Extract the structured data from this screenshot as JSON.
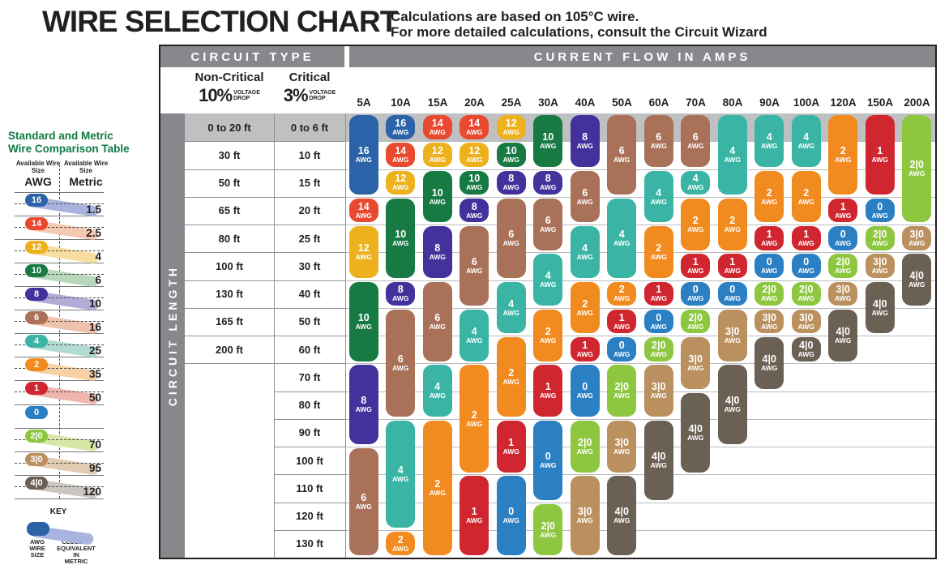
{
  "header": {
    "title": "WIRE SELECTION CHART",
    "subtitle_line1": "Calculations are based on 105°C wire.",
    "subtitle_line2": "For more detailed calculations, consult the Circuit Wizard"
  },
  "sidebar": {
    "title_line1": "Standard and Metric",
    "title_line2": "Wire Comparison Table",
    "title_color": "#0e7b45",
    "awg_col_header": "Available Wire Size",
    "awg_col_unit": "AWG",
    "metric_col_header": "Available Wire Size",
    "metric_col_unit": "Metric",
    "rows": [
      {
        "awg": "16",
        "metric": "1.5",
        "swoosh": "#a9b3dd"
      },
      {
        "awg": "14",
        "metric": "2.5",
        "swoosh": "#f4c8b1"
      },
      {
        "awg": "12",
        "metric": "4",
        "swoosh": "#f8dda1"
      },
      {
        "awg": "10",
        "metric": "6",
        "swoosh": "#b9d7ba"
      },
      {
        "awg": "8",
        "metric": "10",
        "swoosh": "#b5abd7"
      },
      {
        "awg": "6",
        "metric": "16",
        "swoosh": "#eec2ab"
      },
      {
        "awg": "4",
        "metric": "25",
        "swoosh": "#b0dcd2"
      },
      {
        "awg": "2",
        "metric": "35",
        "swoosh": "#f6d1a5"
      },
      {
        "awg": "1",
        "metric": "50",
        "swoosh": "#f0b6ae"
      },
      {
        "awg": "0",
        "metric": null,
        "swoosh": null
      },
      {
        "awg": "2|0",
        "metric": "70",
        "swoosh": "#d8e7a6"
      },
      {
        "awg": "3|0",
        "metric": "95",
        "swoosh": "#e2ccb1"
      },
      {
        "awg": "4|0",
        "metric": "120",
        "swoosh": "#ccc6c1"
      }
    ],
    "key": {
      "label": "KEY",
      "pill_label": "AWG WIRE SIZE",
      "swoosh_label": "CLOSEST EQUIVALENT IN METRIC",
      "pill_color": "#2b62a8",
      "swoosh_color": "#a9b5de"
    }
  },
  "table": {
    "circuit_type_header": "CIRCUIT TYPE",
    "current_flow_header": "CURRENT FLOW IN AMPS",
    "non_critical": {
      "title": "Non-Critical",
      "pct": "10%",
      "sub_line1": "VOLTAGE",
      "sub_line2": "DROP"
    },
    "critical": {
      "title": "Critical",
      "pct": "3%",
      "sub_line1": "VOLTAGE",
      "sub_line2": "DROP"
    },
    "circuit_length_label": "CIRCUIT LENGTH",
    "awg_unit_label": "AWG"
  },
  "awg_colors": {
    "16": "#2b62a8",
    "14": "#e8492f",
    "12": "#edb11d",
    "10": "#177a43",
    "8": "#41339b",
    "6": "#aa7159",
    "4": "#3ab5a5",
    "2": "#f18a1f",
    "1": "#d02630",
    "0": "#2b7fc3",
    "2|0": "#8dc63f",
    "3|0": "#ba905f",
    "4|0": "#6a6054"
  },
  "chart_data": {
    "type": "table",
    "title": "WIRE SELECTION CHART",
    "x_axis_label": "CURRENT FLOW IN AMPS",
    "y_axis_label": "CIRCUIT LENGTH",
    "amp_columns": [
      "5A",
      "10A",
      "15A",
      "20A",
      "25A",
      "30A",
      "40A",
      "50A",
      "60A",
      "70A",
      "80A",
      "90A",
      "100A",
      "120A",
      "150A",
      "200A"
    ],
    "length_rows": [
      {
        "non_critical": "0 to 20 ft",
        "critical": "0 to 6 ft"
      },
      {
        "non_critical": "30 ft",
        "critical": "10 ft"
      },
      {
        "non_critical": "50 ft",
        "critical": "15 ft"
      },
      {
        "non_critical": "65 ft",
        "critical": "20 ft"
      },
      {
        "non_critical": "80 ft",
        "critical": "25 ft"
      },
      {
        "non_critical": "100 ft",
        "critical": "30 ft"
      },
      {
        "non_critical": "130 ft",
        "critical": "40 ft"
      },
      {
        "non_critical": "165 ft",
        "critical": "50 ft"
      },
      {
        "non_critical": "200 ft",
        "critical": "60 ft"
      },
      {
        "non_critical": "",
        "critical": "70 ft"
      },
      {
        "non_critical": "",
        "critical": "80 ft"
      },
      {
        "non_critical": "",
        "critical": "90 ft"
      },
      {
        "non_critical": "",
        "critical": "100 ft"
      },
      {
        "non_critical": "",
        "critical": "110 ft"
      },
      {
        "non_critical": "",
        "critical": "120 ft"
      },
      {
        "non_critical": "",
        "critical": "130 ft"
      }
    ],
    "columns": [
      {
        "amp": "5A",
        "segments": [
          {
            "awg": "16",
            "from": 0,
            "to": 2
          },
          {
            "awg": "14",
            "from": 3,
            "to": 3
          },
          {
            "awg": "12",
            "from": 4,
            "to": 5
          },
          {
            "awg": "10",
            "from": 6,
            "to": 8
          },
          {
            "awg": "8",
            "from": 9,
            "to": 11
          },
          {
            "awg": "6",
            "from": 12,
            "to": 15
          }
        ]
      },
      {
        "amp": "10A",
        "segments": [
          {
            "awg": "16",
            "from": 0,
            "to": 0
          },
          {
            "awg": "14",
            "from": 1,
            "to": 1
          },
          {
            "awg": "12",
            "from": 2,
            "to": 2
          },
          {
            "awg": "10",
            "from": 3,
            "to": 5
          },
          {
            "awg": "8",
            "from": 6,
            "to": 6
          },
          {
            "awg": "6",
            "from": 7,
            "to": 10
          },
          {
            "awg": "4",
            "from": 11,
            "to": 14
          },
          {
            "awg": "2",
            "from": 15,
            "to": 15
          }
        ]
      },
      {
        "amp": "15A",
        "segments": [
          {
            "awg": "14",
            "from": 0,
            "to": 0
          },
          {
            "awg": "12",
            "from": 1,
            "to": 1
          },
          {
            "awg": "10",
            "from": 2,
            "to": 3
          },
          {
            "awg": "8",
            "from": 4,
            "to": 5
          },
          {
            "awg": "6",
            "from": 6,
            "to": 8
          },
          {
            "awg": "4",
            "from": 9,
            "to": 10
          },
          {
            "awg": "2",
            "from": 11,
            "to": 15
          }
        ]
      },
      {
        "amp": "20A",
        "segments": [
          {
            "awg": "14",
            "from": 0,
            "to": 0
          },
          {
            "awg": "12",
            "from": 1,
            "to": 1
          },
          {
            "awg": "10",
            "from": 2,
            "to": 2
          },
          {
            "awg": "8",
            "from": 3,
            "to": 3
          },
          {
            "awg": "6",
            "from": 4,
            "to": 6
          },
          {
            "awg": "4",
            "from": 7,
            "to": 8
          },
          {
            "awg": "2",
            "from": 9,
            "to": 12
          },
          {
            "awg": "1",
            "from": 13,
            "to": 15
          }
        ]
      },
      {
        "amp": "25A",
        "segments": [
          {
            "awg": "12",
            "from": 0,
            "to": 0
          },
          {
            "awg": "10",
            "from": 1,
            "to": 1
          },
          {
            "awg": "8",
            "from": 2,
            "to": 2
          },
          {
            "awg": "6",
            "from": 3,
            "to": 5
          },
          {
            "awg": "4",
            "from": 6,
            "to": 7
          },
          {
            "awg": "2",
            "from": 8,
            "to": 10
          },
          {
            "awg": "1",
            "from": 11,
            "to": 12
          },
          {
            "awg": "0",
            "from": 13,
            "to": 15
          }
        ]
      },
      {
        "amp": "30A",
        "segments": [
          {
            "awg": "10",
            "from": 0,
            "to": 1
          },
          {
            "awg": "8",
            "from": 2,
            "to": 2
          },
          {
            "awg": "6",
            "from": 3,
            "to": 4
          },
          {
            "awg": "4",
            "from": 5,
            "to": 6
          },
          {
            "awg": "2",
            "from": 7,
            "to": 8
          },
          {
            "awg": "1",
            "from": 9,
            "to": 10
          },
          {
            "awg": "0",
            "from": 11,
            "to": 13
          },
          {
            "awg": "2|0",
            "from": 14,
            "to": 15
          }
        ]
      },
      {
        "amp": "40A",
        "segments": [
          {
            "awg": "8",
            "from": 0,
            "to": 1
          },
          {
            "awg": "6",
            "from": 2,
            "to": 3
          },
          {
            "awg": "4",
            "from": 4,
            "to": 5
          },
          {
            "awg": "2",
            "from": 6,
            "to": 7
          },
          {
            "awg": "1",
            "from": 8,
            "to": 8
          },
          {
            "awg": "0",
            "from": 9,
            "to": 10
          },
          {
            "awg": "2|0",
            "from": 11,
            "to": 12
          },
          {
            "awg": "3|0",
            "from": 13,
            "to": 15
          }
        ]
      },
      {
        "amp": "50A",
        "segments": [
          {
            "awg": "6",
            "from": 0,
            "to": 2
          },
          {
            "awg": "4",
            "from": 3,
            "to": 5
          },
          {
            "awg": "2",
            "from": 6,
            "to": 6
          },
          {
            "awg": "1",
            "from": 7,
            "to": 7
          },
          {
            "awg": "0",
            "from": 8,
            "to": 8
          },
          {
            "awg": "2|0",
            "from": 9,
            "to": 10
          },
          {
            "awg": "3|0",
            "from": 11,
            "to": 12
          },
          {
            "awg": "4|0",
            "from": 13,
            "to": 15
          }
        ]
      },
      {
        "amp": "60A",
        "segments": [
          {
            "awg": "6",
            "from": 0,
            "to": 1
          },
          {
            "awg": "4",
            "from": 2,
            "to": 3
          },
          {
            "awg": "2",
            "from": 4,
            "to": 5
          },
          {
            "awg": "1",
            "from": 6,
            "to": 6
          },
          {
            "awg": "0",
            "from": 7,
            "to": 7
          },
          {
            "awg": "2|0",
            "from": 8,
            "to": 8
          },
          {
            "awg": "3|0",
            "from": 9,
            "to": 10
          },
          {
            "awg": "4|0",
            "from": 11,
            "to": 13
          }
        ]
      },
      {
        "amp": "70A",
        "segments": [
          {
            "awg": "6",
            "from": 0,
            "to": 1
          },
          {
            "awg": "4",
            "from": 2,
            "to": 2
          },
          {
            "awg": "2",
            "from": 3,
            "to": 4
          },
          {
            "awg": "1",
            "from": 5,
            "to": 5
          },
          {
            "awg": "0",
            "from": 6,
            "to": 6
          },
          {
            "awg": "2|0",
            "from": 7,
            "to": 7
          },
          {
            "awg": "3|0",
            "from": 8,
            "to": 9
          },
          {
            "awg": "4|0",
            "from": 10,
            "to": 12
          }
        ]
      },
      {
        "amp": "80A",
        "segments": [
          {
            "awg": "4",
            "from": 0,
            "to": 2
          },
          {
            "awg": "2",
            "from": 3,
            "to": 4
          },
          {
            "awg": "1",
            "from": 5,
            "to": 5
          },
          {
            "awg": "0",
            "from": 6,
            "to": 6
          },
          {
            "awg": "3|0",
            "from": 7,
            "to": 8
          },
          {
            "awg": "4|0",
            "from": 9,
            "to": 11
          }
        ]
      },
      {
        "amp": "90A",
        "segments": [
          {
            "awg": "4",
            "from": 0,
            "to": 1
          },
          {
            "awg": "2",
            "from": 2,
            "to": 3
          },
          {
            "awg": "1",
            "from": 4,
            "to": 4
          },
          {
            "awg": "0",
            "from": 5,
            "to": 5
          },
          {
            "awg": "2|0",
            "from": 6,
            "to": 6
          },
          {
            "awg": "3|0",
            "from": 7,
            "to": 7
          },
          {
            "awg": "4|0",
            "from": 8,
            "to": 9
          }
        ]
      },
      {
        "amp": "100A",
        "segments": [
          {
            "awg": "4",
            "from": 0,
            "to": 1
          },
          {
            "awg": "2",
            "from": 2,
            "to": 3
          },
          {
            "awg": "1",
            "from": 4,
            "to": 4
          },
          {
            "awg": "0",
            "from": 5,
            "to": 5
          },
          {
            "awg": "2|0",
            "from": 6,
            "to": 6
          },
          {
            "awg": "3|0",
            "from": 7,
            "to": 7
          },
          {
            "awg": "4|0",
            "from": 8,
            "to": 8
          }
        ]
      },
      {
        "amp": "120A",
        "segments": [
          {
            "awg": "2",
            "from": 0,
            "to": 2
          },
          {
            "awg": "1",
            "from": 3,
            "to": 3
          },
          {
            "awg": "0",
            "from": 4,
            "to": 4
          },
          {
            "awg": "2|0",
            "from": 5,
            "to": 5
          },
          {
            "awg": "3|0",
            "from": 6,
            "to": 6
          },
          {
            "awg": "4|0",
            "from": 7,
            "to": 8
          }
        ]
      },
      {
        "amp": "150A",
        "segments": [
          {
            "awg": "1",
            "from": 0,
            "to": 2
          },
          {
            "awg": "0",
            "from": 3,
            "to": 3
          },
          {
            "awg": "2|0",
            "from": 4,
            "to": 4
          },
          {
            "awg": "3|0",
            "from": 5,
            "to": 5
          },
          {
            "awg": "4|0",
            "from": 6,
            "to": 7
          }
        ]
      },
      {
        "amp": "200A",
        "segments": [
          {
            "awg": "2|0",
            "from": 0,
            "to": 3
          },
          {
            "awg": "3|0",
            "from": 4,
            "to": 4
          },
          {
            "awg": "4|0",
            "from": 5,
            "to": 6
          }
        ]
      }
    ]
  }
}
